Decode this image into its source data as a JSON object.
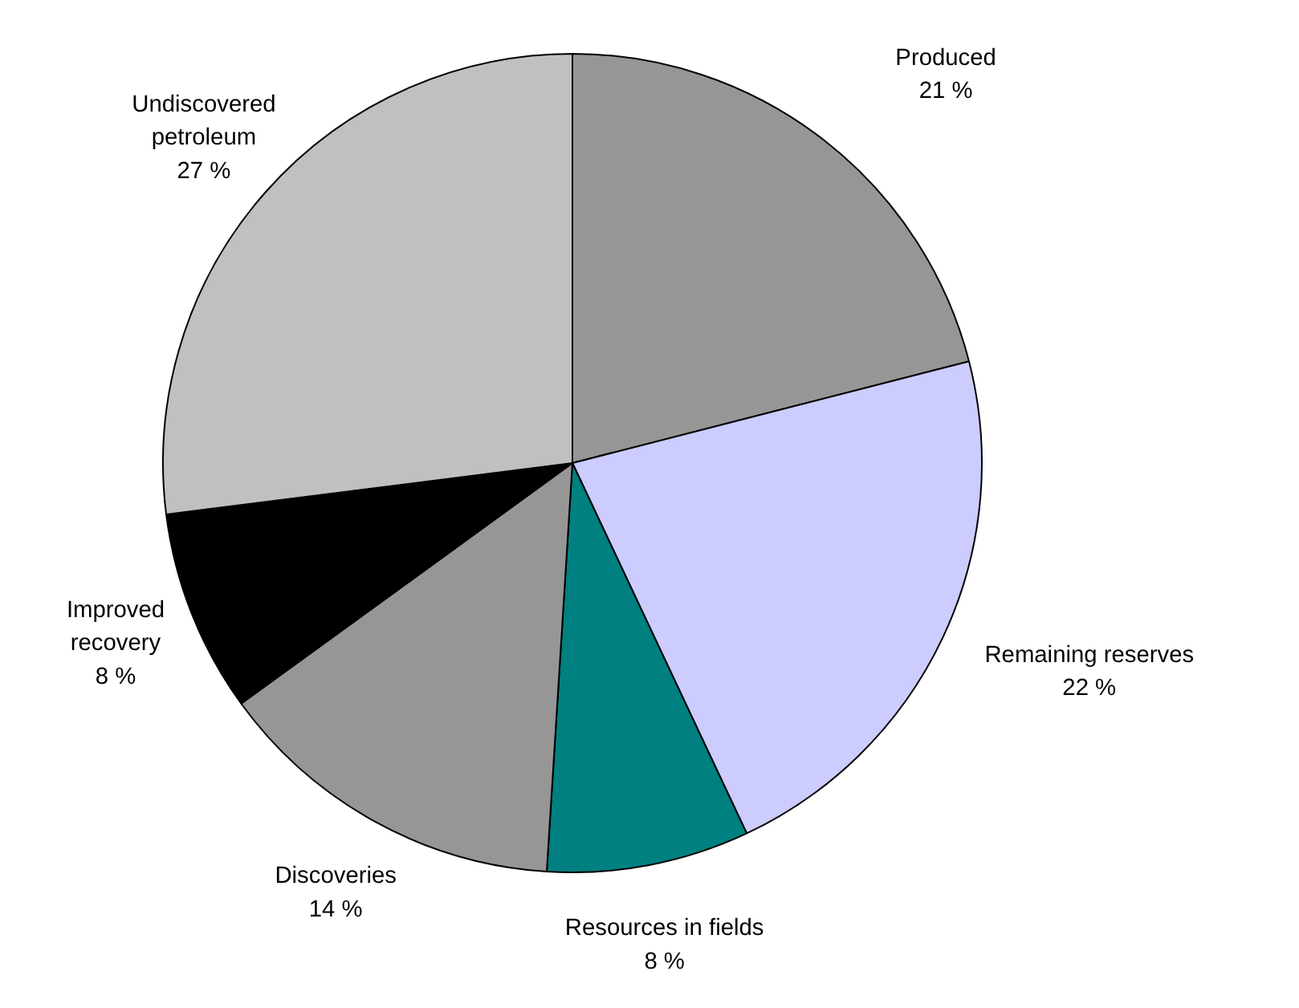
{
  "chart_data": {
    "type": "pie",
    "categories": [
      "Produced",
      "Remaining reserves",
      "Resources in fields",
      "Discoveries",
      "Improved recovery",
      "Undiscovered petroleum"
    ],
    "values": [
      21,
      22,
      8,
      14,
      8,
      27
    ],
    "value_labels": [
      "21 %",
      "22 %",
      "8 %",
      "14 %",
      "8 %",
      "27 %"
    ],
    "colors": [
      "#969696",
      "#ccccff",
      "#008080",
      "#969696",
      "#000000",
      "#c0c0c0"
    ]
  }
}
